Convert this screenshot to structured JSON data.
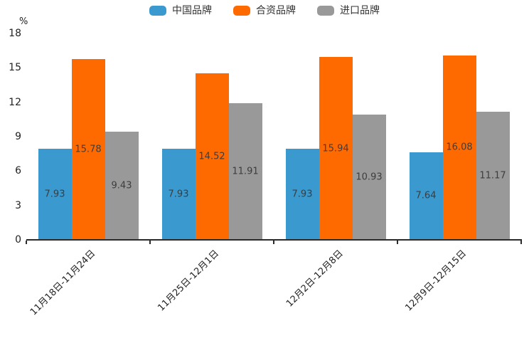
{
  "chart_data": {
    "type": "bar",
    "title": "",
    "unit_label": "%",
    "categories": [
      "11月18日-11月24日",
      "11月25日-12月1日",
      "12月2日-12月8日",
      "12月9日-12月15日"
    ],
    "series": [
      {
        "name": "中国品牌",
        "color": "#3A99CE",
        "values": [
          7.93,
          7.93,
          7.93,
          7.64
        ]
      },
      {
        "name": "合资品牌",
        "color": "#FF6A00",
        "values": [
          15.78,
          14.52,
          15.94,
          16.08
        ]
      },
      {
        "name": "进口品牌",
        "color": "#999999",
        "values": [
          9.43,
          11.91,
          10.93,
          11.17
        ]
      }
    ],
    "ylim": [
      0,
      18
    ],
    "yticks": [
      0,
      3,
      6,
      9,
      12,
      15,
      18
    ],
    "grid": false,
    "legend_position": "top",
    "value_labels": true,
    "axis_color": "#2b2b2b"
  }
}
